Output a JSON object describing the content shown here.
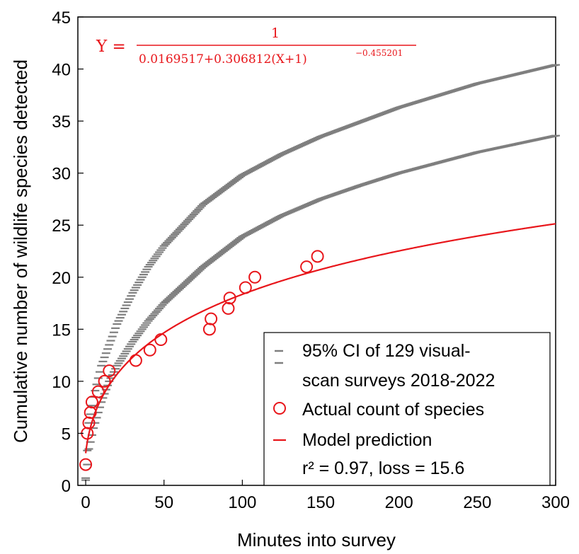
{
  "chart_data": {
    "type": "scatter",
    "xlabel": "Minutes into survey",
    "ylabel": "Cumulative number of wildlife species detected",
    "xlim": [
      -5,
      300
    ],
    "ylim": [
      0,
      45
    ],
    "xticks": [
      "0",
      "50",
      "100",
      "150",
      "200",
      "250",
      "300"
    ],
    "yticks": [
      "0",
      "5",
      "10",
      "15",
      "20",
      "25",
      "30",
      "35",
      "40",
      "45"
    ],
    "grid": false,
    "equation": {
      "lhs": "Y =",
      "numerator": "1",
      "denominator": "0.0169517+0.306812(X+1)",
      "exponent": "−0.455201",
      "params": {
        "a": 0.0169517,
        "b": 0.306812,
        "c": 0.455201
      }
    },
    "series": [
      {
        "name": "95% CI of 129 visual-scan surveys 2018-2022",
        "style": "dash-markers",
        "color": "#7f7f7f",
        "bounds": [
          {
            "x": [
              0,
              2,
              5,
              10,
              15,
              20,
              30,
              40,
              50,
              75,
              100,
              125,
              150,
              175,
              200,
              250,
              300
            ],
            "y": [
              0.7,
              6.0,
              8.5,
              11.5,
              13.5,
              15.5,
              18.5,
              21.0,
              23.0,
              27.0,
              29.8,
              31.8,
              33.5,
              34.9,
              36.3,
              38.6,
              40.4
            ]
          },
          {
            "x": [
              0,
              2,
              5,
              10,
              15,
              20,
              30,
              40,
              50,
              75,
              100,
              125,
              150,
              175,
              200,
              250,
              300
            ],
            "y": [
              0.5,
              3.5,
              5.5,
              8.0,
              10.0,
              11.5,
              13.8,
              15.8,
              17.5,
              21.0,
              23.9,
              25.9,
              27.5,
              28.8,
              30.0,
              32.0,
              33.6
            ]
          }
        ]
      },
      {
        "name": "Actual count of species",
        "style": "open-circle",
        "color": "#e8161b",
        "x": [
          0,
          1,
          2,
          3,
          4,
          8,
          12,
          15,
          32,
          41,
          48,
          79,
          80,
          91,
          92,
          102,
          108,
          141,
          148
        ],
        "y": [
          2,
          5,
          6,
          7,
          8,
          9,
          10,
          11,
          12,
          13,
          14,
          15,
          16,
          17,
          18,
          19,
          20,
          21,
          22
        ]
      },
      {
        "name": "Model prediction",
        "style": "line",
        "color": "#e8161b"
      }
    ],
    "annotation": "r² = 0.97, loss = 15.6",
    "legend_position": "bottom-right"
  }
}
